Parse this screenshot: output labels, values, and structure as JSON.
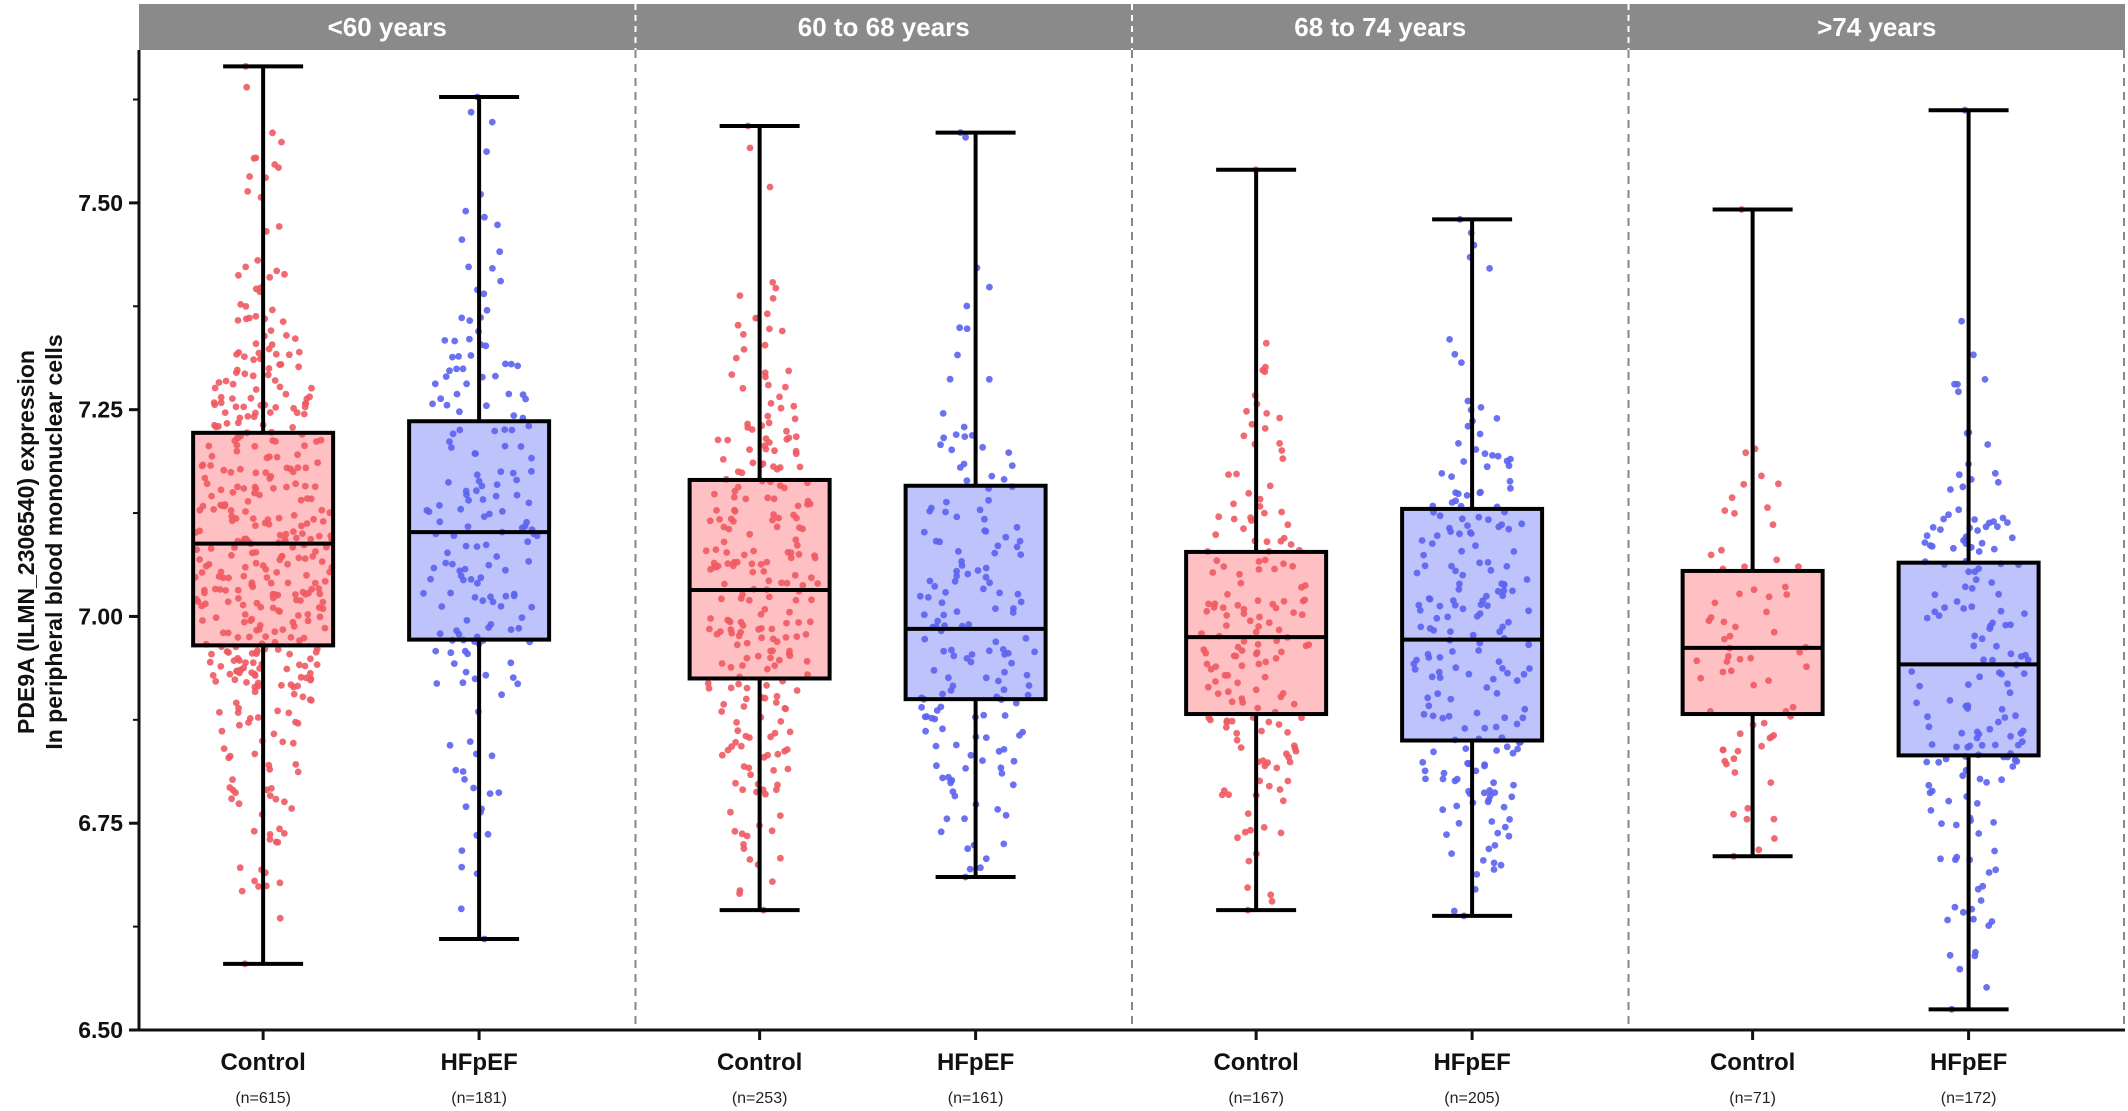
{
  "chart_data": {
    "type": "box",
    "ylabel": "PDE9A (ILMN_2306540) expression",
    "ylabel_line2": "In peripheral blood mononuclear cells",
    "ylim": [
      6.5,
      7.68
    ],
    "yticks": [
      "6.50",
      "6.75",
      "7.00",
      "7.25",
      "7.50"
    ],
    "colors": {
      "control_fill": "#ffc0c3",
      "control_point": "#f05a62",
      "hfpef_fill": "#bfc3fb",
      "hfpef_point": "#5b63ef",
      "facet_header": "#8a8a8a"
    },
    "facets": [
      {
        "label": "<60 years",
        "groups": [
          {
            "name": "Control",
            "n_label": "(n=615)",
            "n": 615,
            "min": 6.58,
            "q1": 6.965,
            "median": 7.088,
            "q3": 7.222,
            "max": 7.665
          },
          {
            "name": "HFpEF",
            "n_label": "(n=181)",
            "n": 181,
            "min": 6.61,
            "q1": 6.972,
            "median": 7.102,
            "q3": 7.236,
            "max": 7.628
          }
        ]
      },
      {
        "label": "60 to 68 years",
        "groups": [
          {
            "name": "Control",
            "n_label": "(n=253)",
            "n": 253,
            "min": 6.645,
            "q1": 6.925,
            "median": 7.032,
            "q3": 7.165,
            "max": 7.593
          },
          {
            "name": "HFpEF",
            "n_label": "(n=161)",
            "n": 161,
            "min": 6.685,
            "q1": 6.9,
            "median": 6.985,
            "q3": 7.158,
            "max": 7.585
          }
        ]
      },
      {
        "label": "68 to 74 years",
        "groups": [
          {
            "name": "Control",
            "n_label": "(n=167)",
            "n": 167,
            "min": 6.645,
            "q1": 6.882,
            "median": 6.975,
            "q3": 7.078,
            "max": 7.54
          },
          {
            "name": "HFpEF",
            "n_label": "(n=205)",
            "n": 205,
            "min": 6.638,
            "q1": 6.85,
            "median": 6.972,
            "q3": 7.13,
            "max": 7.48
          }
        ]
      },
      {
        "label": ">74 years",
        "groups": [
          {
            "name": "Control",
            "n_label": "(n=71)",
            "n": 71,
            "min": 6.71,
            "q1": 6.882,
            "median": 6.962,
            "q3": 7.055,
            "max": 7.492
          },
          {
            "name": "HFpEF",
            "n_label": "(n=172)",
            "n": 172,
            "min": 6.525,
            "q1": 6.832,
            "median": 6.942,
            "q3": 7.065,
            "max": 7.612
          }
        ]
      }
    ]
  }
}
